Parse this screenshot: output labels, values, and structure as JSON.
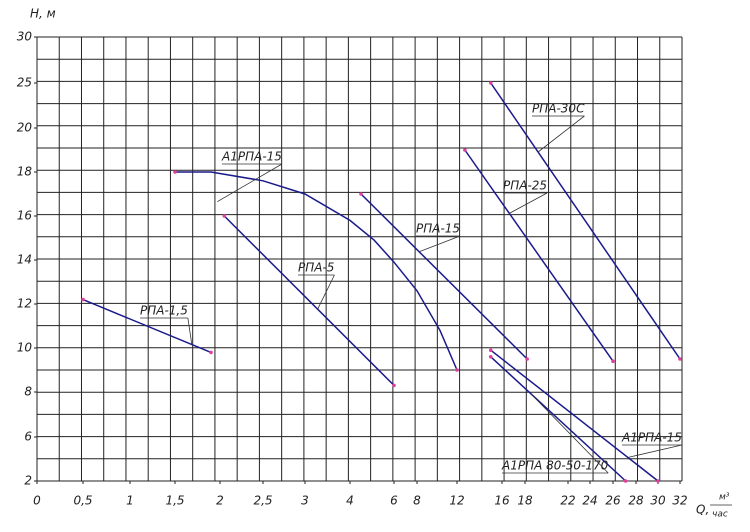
{
  "chart_data": {
    "type": "line",
    "ylabel": "Н, м",
    "xlabel": "Q,",
    "xunit_top": "м³",
    "xunit_bottom": "час",
    "xlim": [
      0,
      32
    ],
    "ylim": [
      2,
      30
    ],
    "xticks": [
      0,
      {
        "value": 0.5,
        "label": "0,5"
      },
      1,
      {
        "value": 1.5,
        "label": "1,5"
      },
      2,
      {
        "value": 2.5,
        "label": "2,5"
      },
      3,
      4,
      6,
      8,
      12,
      16,
      18,
      22,
      24,
      26,
      28,
      30,
      32
    ],
    "yticks": [
      30,
      25,
      20,
      18,
      16,
      14,
      12,
      10,
      8,
      6,
      2
    ],
    "color": "#1a1a8c",
    "point_color": "#e0409a",
    "series": [
      {
        "name": "РПА-1,5",
        "x": [
          0.5,
          1.9
        ],
        "values": [
          12.2,
          9.8
        ]
      },
      {
        "name": "РПА-5",
        "x": [
          2.05,
          6
        ],
        "values": [
          16,
          8.3
        ]
      },
      {
        "name": "А1РПА-15",
        "x": [
          1.5,
          1.9,
          2.5,
          3,
          4,
          5.1,
          6,
          8,
          10.3,
          12
        ],
        "values": [
          18,
          18,
          17.6,
          17,
          15.8,
          14.9,
          13.9,
          12.6,
          10.8,
          9
        ]
      },
      {
        "name": "РПА-15",
        "x": [
          4.5,
          18.2
        ],
        "values": [
          17,
          9.5
        ]
      },
      {
        "name": "РПА-25",
        "x": [
          12.7,
          26
        ],
        "values": [
          19,
          9.4
        ]
      },
      {
        "name": "РПА-30С",
        "x": [
          15,
          32
        ],
        "values": [
          25,
          9.5
        ]
      },
      {
        "name": "А1РПА-15",
        "x": [
          15,
          30
        ],
        "values": [
          9.9,
          2
        ]
      },
      {
        "name": "А1РПА 80-50-170",
        "x": [
          15,
          27.1
        ],
        "values": [
          9.6,
          2
        ]
      }
    ]
  }
}
